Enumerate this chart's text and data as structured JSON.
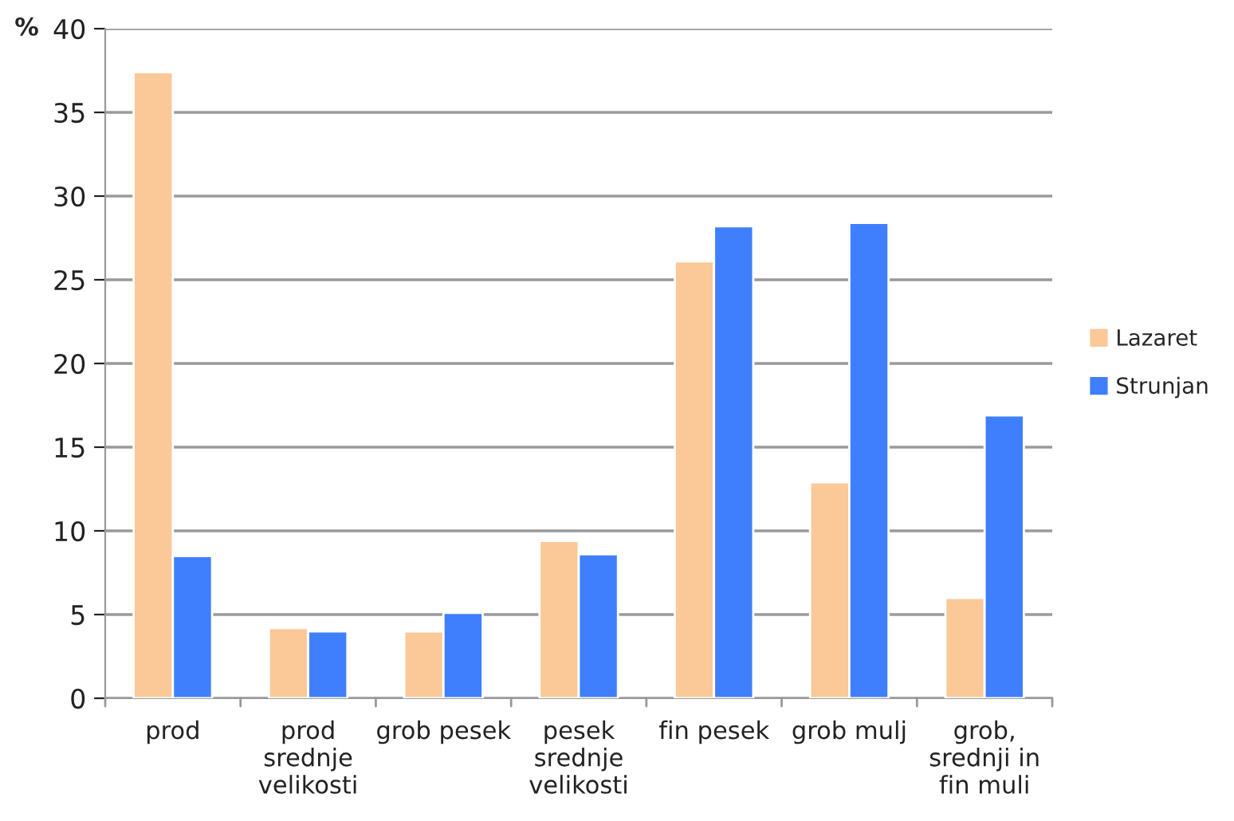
{
  "chart_data": {
    "type": "bar",
    "ylabel": "%",
    "categories": [
      "prod",
      "prod\nsrednje\nvelikosti",
      "grob pesek",
      "pesek\nsrednje\nvelikosti",
      "fin pesek",
      "grob mulj",
      "grob,\nsrednji in\nfin muli"
    ],
    "series": [
      {
        "name": "Lazaret",
        "color": "#fbc898",
        "values": [
          37.4,
          4.2,
          4.0,
          9.4,
          26.1,
          12.9,
          6.0
        ]
      },
      {
        "name": "Strunjan",
        "color": "#3f7ffd",
        "values": [
          8.5,
          4.0,
          5.1,
          8.6,
          28.2,
          28.4,
          16.9
        ]
      }
    ],
    "ylim": [
      0,
      40
    ],
    "yticks": [
      0,
      5,
      10,
      15,
      20,
      25,
      30,
      35,
      40
    ],
    "grid": "y",
    "legend": "right"
  }
}
